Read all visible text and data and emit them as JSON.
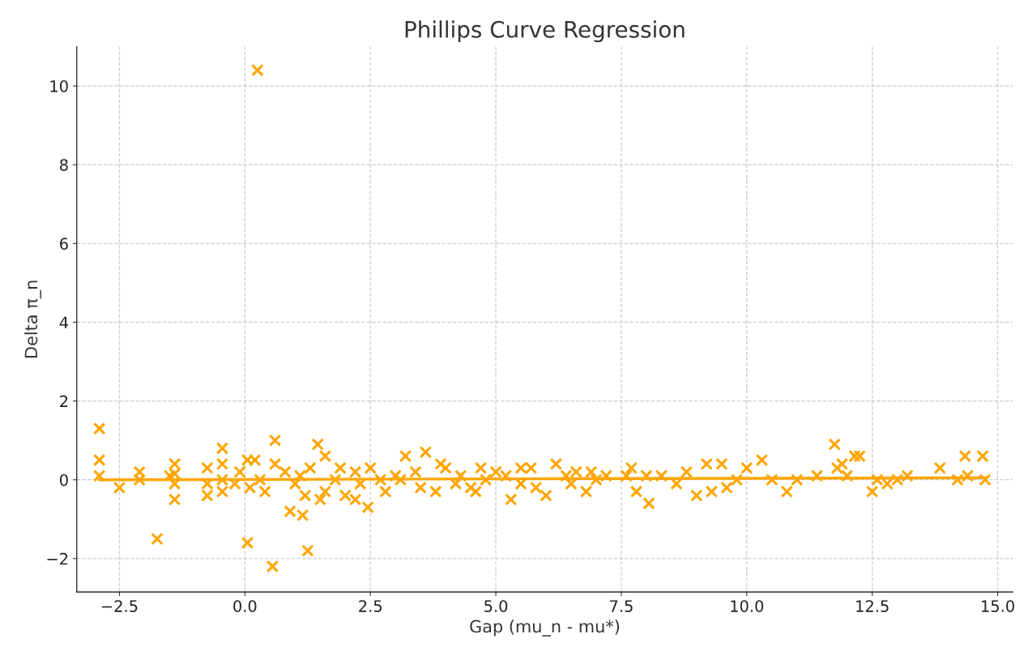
{
  "chart_data": {
    "type": "scatter",
    "title": "Phillips Curve Regression",
    "xlabel": "Gap (mu_n - mu*)",
    "ylabel": "Delta π_n",
    "xlim": [
      -3.35,
      15.3
    ],
    "ylim": [
      -2.85,
      11.0
    ],
    "xticks": [
      {
        "value": -2.5,
        "label": "−2.5"
      },
      {
        "value": 0,
        "label": "0.0"
      },
      2.5,
      {
        "value": 5,
        "label": "5.0"
      },
      7.5,
      {
        "value": 10,
        "label": "10.0"
      },
      12.5,
      {
        "value": 15,
        "label": "15.0"
      }
    ],
    "yticks": [
      {
        "value": -2,
        "label": "−2"
      },
      0,
      2,
      4,
      6,
      8,
      10
    ],
    "grid": true,
    "legend": false,
    "series": [
      {
        "marker": "cross",
        "color": "#ffa500",
        "x": [
          0.25,
          -2.9,
          -2.9,
          -2.9,
          -2.5,
          -2.1,
          -2.1,
          -1.75,
          -1.4,
          -1.4,
          -1.4,
          -1.4,
          -1.5,
          -0.75,
          -0.75,
          -0.75,
          -0.45,
          -0.45,
          -0.45,
          -0.45,
          -0.1,
          0.05,
          0.05,
          0.2,
          0.1,
          0.3,
          0.55,
          0.6,
          0.6,
          0.9,
          1.15,
          1.25,
          1.45,
          1.6,
          2.45,
          3.2,
          3.6,
          5.3,
          8.05,
          11.75,
          12.15,
          12.25,
          13.85,
          14.35,
          14.7,
          14.75,
          14.2,
          14.4,
          13.2,
          12.5,
          12.8,
          11.8,
          11.9,
          12.0,
          10.8,
          10.3,
          10.0,
          9.5,
          9.2,
          9.0,
          9.3,
          8.8,
          8.6,
          8.3,
          7.7,
          7.6,
          7.8,
          7.2,
          6.9,
          6.5,
          6.2,
          6.0,
          5.7,
          5.5,
          5.0,
          4.7,
          4.5,
          4.3,
          4.0,
          3.8,
          3.4,
          3.0,
          2.8,
          2.5,
          2.2,
          2.0,
          1.8,
          1.6,
          1.3,
          1.0,
          0.8,
          1.5,
          1.2,
          2.2,
          3.1,
          3.5,
          4.2,
          4.8,
          5.2,
          5.8,
          6.4,
          6.8,
          7.0,
          3.9,
          2.7,
          1.9,
          4.6,
          5.5,
          6.6,
          11.0,
          10.5,
          9.8,
          9.6,
          11.4,
          12.6,
          13.0,
          8.0,
          2.3,
          1.1,
          0.4,
          -0.2
        ],
        "values": [
          10.4,
          1.3,
          0.5,
          0.1,
          -0.2,
          0.2,
          0.0,
          -1.5,
          0.4,
          0.15,
          -0.1,
          -0.5,
          0.1,
          0.3,
          -0.1,
          -0.4,
          0.8,
          0.4,
          0.0,
          -0.3,
          0.2,
          0.5,
          -1.6,
          0.5,
          -0.2,
          0.0,
          -2.2,
          1.0,
          0.4,
          -0.8,
          -0.9,
          -1.8,
          0.9,
          0.6,
          -0.7,
          0.6,
          0.7,
          -0.5,
          -0.6,
          0.9,
          0.6,
          0.6,
          0.3,
          0.6,
          0.6,
          0.0,
          0.0,
          0.1,
          0.1,
          -0.3,
          -0.1,
          0.3,
          0.4,
          0.1,
          -0.3,
          0.5,
          0.3,
          0.4,
          0.4,
          -0.4,
          -0.3,
          0.2,
          -0.1,
          0.1,
          0.3,
          0.1,
          -0.3,
          0.1,
          0.2,
          -0.1,
          0.4,
          -0.4,
          0.3,
          0.3,
          0.2,
          0.3,
          -0.2,
          0.1,
          0.3,
          -0.3,
          0.2,
          0.1,
          -0.3,
          0.3,
          0.2,
          -0.4,
          0.0,
          -0.3,
          0.3,
          -0.1,
          0.2,
          -0.5,
          -0.4,
          -0.5,
          0.0,
          -0.2,
          -0.1,
          0.0,
          0.1,
          -0.2,
          0.1,
          -0.3,
          0.0,
          0.4,
          0.0,
          0.3,
          -0.3,
          -0.1,
          0.2,
          0.0,
          0.0,
          0.0,
          -0.2,
          0.1,
          0.0,
          0.0,
          0.1,
          -0.1,
          0.1,
          -0.3,
          -0.1
        ]
      },
      {
        "type": "line",
        "marker": "none",
        "line_style": "solid",
        "color": "#ffa500",
        "x": [
          -2.9,
          14.75
        ],
        "values": [
          0.0,
          0.05
        ]
      }
    ]
  }
}
